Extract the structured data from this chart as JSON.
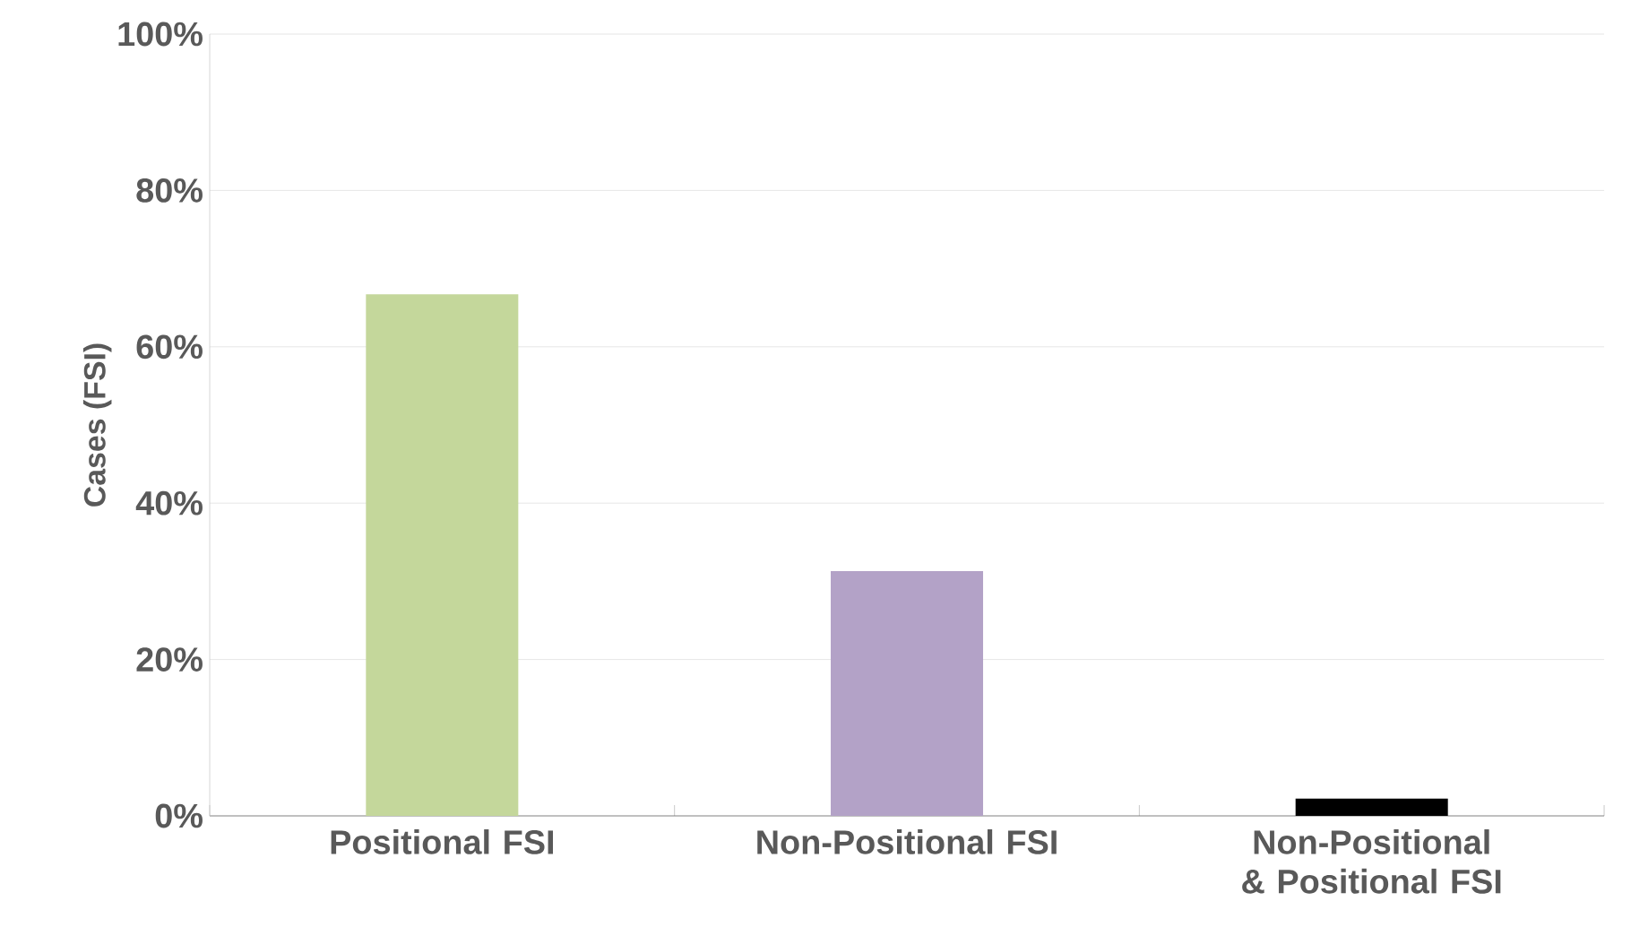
{
  "chart_data": {
    "type": "bar",
    "ylabel": "Cases (FSI)",
    "categories": [
      "Positional FSI",
      "Non-Positional FSI",
      "Non-Positional & Positional FSI"
    ],
    "values": [
      66.7,
      31.3,
      2.2
    ],
    "colors": [
      "#c4d79b",
      "#b3a2c7",
      "#000000"
    ],
    "ylim": [
      0,
      100
    ],
    "yticks": [
      {
        "value": 0,
        "label": "0%"
      },
      {
        "value": 20,
        "label": "20%"
      },
      {
        "value": 40,
        "label": "40%"
      },
      {
        "value": 60,
        "label": "60%"
      },
      {
        "value": 80,
        "label": "80%"
      },
      {
        "value": 100,
        "label": "100%"
      }
    ],
    "grid": "y"
  }
}
